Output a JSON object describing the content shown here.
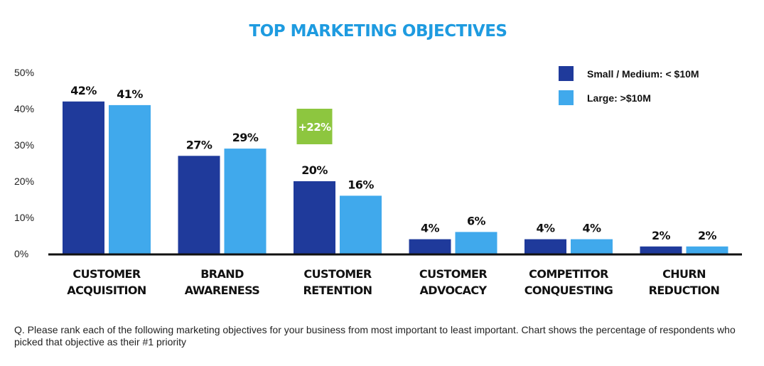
{
  "chart_data": {
    "type": "bar",
    "title": "TOP MARKETING OBJECTIVES",
    "categories": [
      [
        "CUSTOMER",
        "ACQUISITION"
      ],
      [
        "BRAND",
        "AWARENESS"
      ],
      [
        "CUSTOMER",
        "RETENTION"
      ],
      [
        "CUSTOMER",
        "ADVOCACY"
      ],
      [
        "COMPETITOR",
        "CONQUESTING"
      ],
      [
        "CHURN",
        "REDUCTION"
      ]
    ],
    "series": [
      {
        "name": "Small / Medium: < $10M",
        "color": "#1f3a9b",
        "values": [
          42,
          27,
          20,
          4,
          4,
          2
        ],
        "labels": [
          "42%",
          "27%",
          "20%",
          "4%",
          "4%",
          "2%"
        ]
      },
      {
        "name": "Large: >$10M",
        "color": "#40a9ec",
        "values": [
          41,
          29,
          16,
          6,
          4,
          2
        ],
        "labels": [
          "41%",
          "29%",
          "16%",
          "6%",
          "4%",
          "2%"
        ]
      }
    ],
    "ylim": [
      0,
      50
    ],
    "yticks": [
      0,
      10,
      20,
      30,
      40,
      50
    ],
    "ytick_labels": [
      "0%",
      "10%",
      "20%",
      "30%",
      "40%",
      "50%"
    ],
    "grid": false,
    "legend_position": "top-right",
    "annotations": [
      {
        "text": "+22%",
        "category_index": 2,
        "color": "#8dc63f"
      }
    ]
  },
  "footnote": "Q. Please rank each of the following marketing objectives for your business from most important to least important. Chart shows the percentage of respondents who picked that objective as their #1 priority"
}
